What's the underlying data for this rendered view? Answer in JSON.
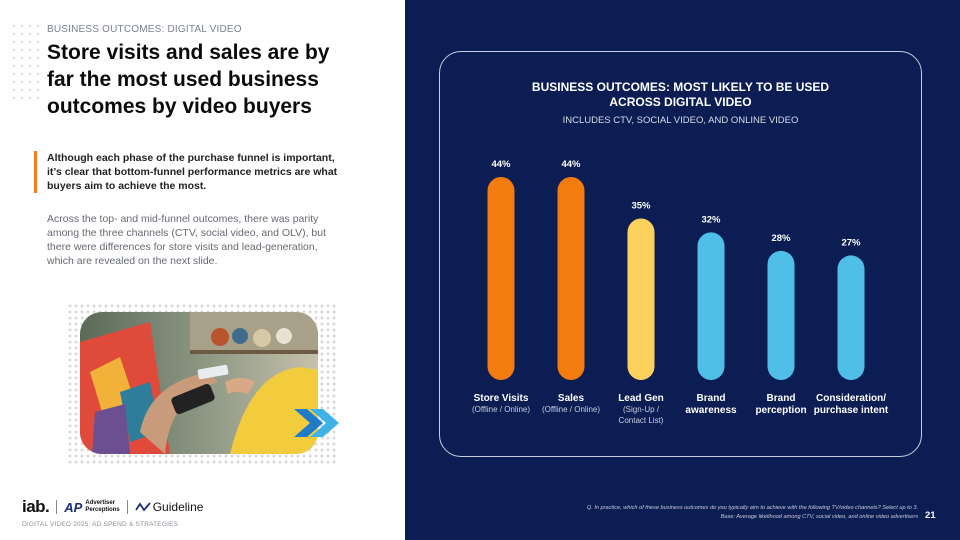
{
  "left": {
    "kicker": "BUSINESS OUTCOMES: DIGITAL VIDEO",
    "headline": "Store visits and sales are by far the most used business outcomes by video buyers",
    "lead": "Although each phase of the purchase funnel is important, it’s clear that bottom-funnel performance metrics are what buyers aim to achieve the most.",
    "body": "Across the top- and mid-funnel outcomes, there was parity among the three channels (CTV, social video, and OLV), but there were differences for store visits and lead-generation, which are revealed on the next slide.",
    "logos": {
      "iab": "iab.",
      "ap_line1": "Advertiser",
      "ap_line2": "Perceptions",
      "guideline": "Guideline"
    },
    "footer": "DIGITAL VIDEO 2025: AD SPEND & STRATEGIES"
  },
  "chart_data": {
    "type": "bar",
    "title_line1": "BUSINESS OUTCOMES: MOST LIKELY TO BE USED",
    "title_line2": "ACROSS DIGITAL VIDEO",
    "subtitle": "INCLUDES CTV, SOCIAL VIDEO, AND ONLINE VIDEO",
    "categories": [
      {
        "label": [
          "Store Visits"
        ],
        "sub": [
          "(Offline / Online)"
        ]
      },
      {
        "label": [
          "Sales"
        ],
        "sub": [
          "(Offline / Online)"
        ]
      },
      {
        "label": [
          "Lead Gen"
        ],
        "sub": [
          "(Sign-Up /",
          "Contact List)"
        ]
      },
      {
        "label": [
          "Brand",
          "awareness"
        ],
        "sub": []
      },
      {
        "label": [
          "Brand",
          "perception"
        ],
        "sub": []
      },
      {
        "label": [
          "Consideration/",
          "purchase intent"
        ],
        "sub": []
      }
    ],
    "values": [
      44,
      44,
      35,
      32,
      28,
      27
    ],
    "value_labels": [
      "44%",
      "44%",
      "35%",
      "32%",
      "28%",
      "27%"
    ],
    "colors": [
      "#f47b0e",
      "#f47b0e",
      "#fdd25c",
      "#4fbfe8",
      "#4fbfe8",
      "#4fbfe8"
    ],
    "ylim": [
      0,
      44
    ],
    "grid": false,
    "legend": "none"
  },
  "footnote": {
    "line1": "Q. In practice, which of these business outcomes do you typically aim to achieve with the following TV/video channels? Select up to 3.",
    "line2": "Base: Average likelihood among CTV, social video, and online video advertisers"
  },
  "page_number": "21"
}
